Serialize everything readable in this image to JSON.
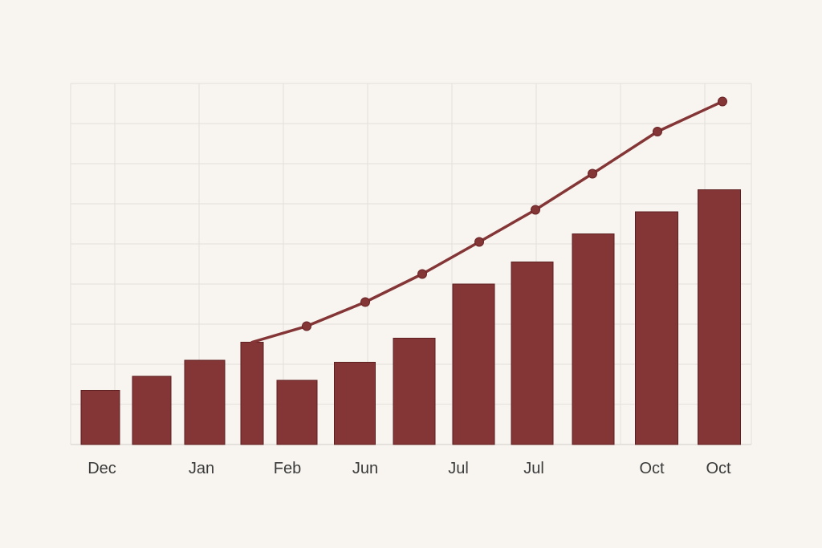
{
  "colors": {
    "background": "#f8f5f0",
    "bar": "#843536",
    "line": "#843536",
    "grid": "#e2dfdb"
  },
  "chart_data": {
    "type": "bar",
    "title": "",
    "xlabel": "",
    "ylabel": "",
    "ylim": [
      0,
      90
    ],
    "grid": true,
    "legend": "none",
    "tick_labels": [
      "Dec",
      "",
      "Jan",
      "",
      "Feb",
      "Jun",
      "",
      "Jul",
      "Jul",
      "",
      "Oct",
      "Oct"
    ],
    "series": [
      {
        "type": "bar",
        "values": [
          13.5,
          17,
          21,
          25.5,
          16,
          20.5,
          26.5,
          40,
          45.5,
          52.5,
          58,
          63.5
        ]
      },
      {
        "type": "line",
        "start_index": 3,
        "values": [
          25.5,
          29.5,
          35.5,
          42.5,
          50.5,
          58.5,
          67.5,
          78,
          85.5
        ]
      }
    ]
  }
}
